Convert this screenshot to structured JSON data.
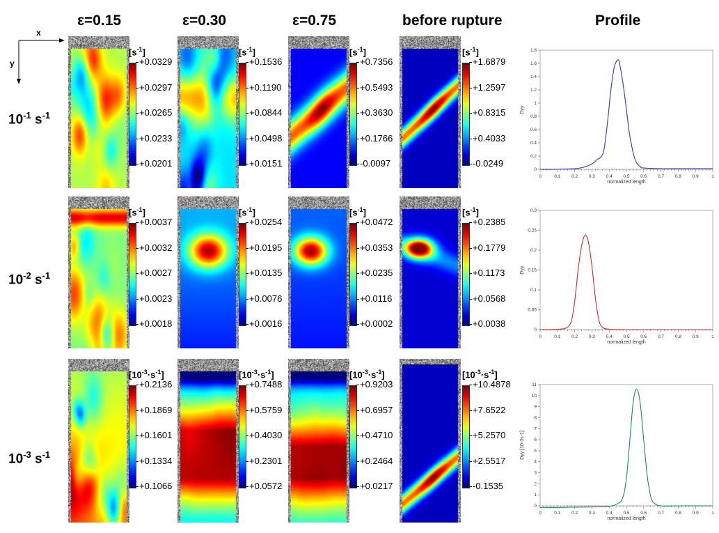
{
  "columns": [
    "ε=0.15",
    "ε=0.30",
    "ε=0.75",
    "before rupture",
    "Profile"
  ],
  "axes": {
    "x": "x",
    "y": "y"
  },
  "rows": [
    {
      "label_base": "10",
      "label_exp": "-1",
      "label_unit": "s",
      "label_unit_exp": "-1",
      "panels": [
        {
          "unit": "[s",
          "unit_exp": "-1",
          "unit_close": "]",
          "ticks": [
            "+0.0329",
            "+0.0297",
            "+0.0265",
            "+0.0233",
            "+0.0201"
          ]
        },
        {
          "unit": "[s",
          "unit_exp": "-1",
          "unit_close": "]",
          "ticks": [
            "+0.1536",
            "+0.1190",
            "+0.0844",
            "+0.0498",
            "+0.0151"
          ]
        },
        {
          "unit": "[s",
          "unit_exp": "-1",
          "unit_close": "]",
          "ticks": [
            "+0.7356",
            "+0.5493",
            "+0.3630",
            "+0.1766",
            "-0.0097"
          ]
        },
        {
          "unit": "[s",
          "unit_exp": "-1",
          "unit_close": "]",
          "ticks": [
            "+1.6879",
            "+1.2597",
            "+0.8315",
            "+0.4033",
            "-0.0249"
          ]
        }
      ]
    },
    {
      "label_base": "10",
      "label_exp": "-2",
      "label_unit": "s",
      "label_unit_exp": "-1",
      "panels": [
        {
          "unit": "[s",
          "unit_exp": "-1",
          "unit_close": "]",
          "ticks": [
            "+0.0037",
            "+0.0032",
            "+0.0027",
            "+0.0023",
            "+0.0018"
          ]
        },
        {
          "unit": "[s",
          "unit_exp": "-1",
          "unit_close": "]",
          "ticks": [
            "+0.0254",
            "+0.0195",
            "+0.0135",
            "+0.0076",
            "+0.0016"
          ]
        },
        {
          "unit": "[s",
          "unit_exp": "-1",
          "unit_close": "]",
          "ticks": [
            "+0.0472",
            "+0.0353",
            "+0.0235",
            "+0.0116",
            "+0.0002"
          ]
        },
        {
          "unit": "[s",
          "unit_exp": "-1",
          "unit_close": "]",
          "ticks": [
            "+0.2385",
            "+0.1779",
            "+0.1173",
            "+0.0568",
            "+0.0038"
          ]
        }
      ]
    },
    {
      "label_base": "10",
      "label_exp": "-3",
      "label_unit": "s",
      "label_unit_exp": "-1",
      "panels": [
        {
          "unit": "[10",
          "unit_exp": "-3",
          "unit_close": "·s",
          "unit_exp2": "-1",
          "unit_end": "]",
          "ticks": [
            "+0.2136",
            "+0.1869",
            "+0.1601",
            "+0.1334",
            "+0.1066"
          ]
        },
        {
          "unit": "[10",
          "unit_exp": "-3",
          "unit_close": "·s",
          "unit_exp2": "-1",
          "unit_end": "]",
          "ticks": [
            "+0.7488",
            "+0.5759",
            "+0.4030",
            "+0.2301",
            "+0.0572"
          ]
        },
        {
          "unit": "[10",
          "unit_exp": "-3",
          "unit_close": "·s",
          "unit_exp2": "-1",
          "unit_end": "]",
          "ticks": [
            "+0.9203",
            "+0.6957",
            "+0.4710",
            "+0.2464",
            "+0.0217"
          ]
        },
        {
          "unit": "[10",
          "unit_exp": "-3",
          "unit_close": "·s",
          "unit_exp2": "-1",
          "unit_end": "]",
          "ticks": [
            "+10.4878",
            "+7.6522",
            "+5.2570",
            "+2.5517",
            "-0.1535"
          ]
        }
      ]
    }
  ],
  "chart_data": [
    {
      "type": "line",
      "color": "#2f3aa8",
      "xlabel": "normalized length",
      "ylabel": "Dyy",
      "xlim": [
        0,
        1
      ],
      "ylim": [
        0,
        1.8
      ],
      "xticks": [
        "0",
        "0.1",
        "0.2",
        "0.3",
        "0.4",
        "0.5",
        "0.6",
        "0.7",
        "0.8",
        "0.9",
        "1"
      ],
      "yticks": [
        "0",
        "0.2",
        "0.4",
        "0.6",
        "0.8",
        "1",
        "1.2",
        "1.4",
        "1.6",
        "1.8"
      ],
      "x": [
        0,
        0.1,
        0.2,
        0.25,
        0.3,
        0.33,
        0.35,
        0.37,
        0.39,
        0.41,
        0.43,
        0.45,
        0.46,
        0.48,
        0.5,
        0.52,
        0.55,
        0.58,
        0.6,
        0.7,
        0.8,
        0.9,
        1
      ],
      "y": [
        0,
        0,
        0.01,
        0.03,
        0.08,
        0.15,
        0.18,
        0.3,
        0.7,
        1.2,
        1.55,
        1.65,
        1.6,
        1.3,
        0.9,
        0.5,
        0.15,
        0.04,
        0.02,
        0.01,
        0.01,
        0.01,
        0.01
      ]
    },
    {
      "type": "line",
      "color": "#c0302a",
      "xlabel": "normalized length",
      "ylabel": "Dyy",
      "xlim": [
        0,
        1
      ],
      "ylim": [
        0,
        0.3
      ],
      "xticks": [
        "0",
        "0.1",
        "0.2",
        "0.3",
        "0.4",
        "0.5",
        "0.6",
        "0.7",
        "0.8",
        "0.9",
        "1"
      ],
      "yticks": [
        "0",
        "0.05",
        "0.1",
        "0.15",
        "0.2",
        "0.25",
        "0.3"
      ],
      "x": [
        0,
        0.1,
        0.15,
        0.18,
        0.2,
        0.22,
        0.24,
        0.26,
        0.28,
        0.3,
        0.32,
        0.34,
        0.36,
        0.4,
        0.5,
        0.6,
        0.8,
        1
      ],
      "y": [
        0,
        0.001,
        0.004,
        0.02,
        0.07,
        0.15,
        0.21,
        0.238,
        0.22,
        0.16,
        0.08,
        0.025,
        0.006,
        0.001,
        0,
        0,
        0,
        0
      ]
    },
    {
      "type": "line",
      "color": "#1f8a5a",
      "xlabel": "normalized length",
      "ylabel": "Dyy [10-3s-1]",
      "xlim": [
        0,
        1
      ],
      "ylim": [
        0,
        11
      ],
      "xticks": [
        "0",
        "0.1",
        "0.2",
        "0.3",
        "0.4",
        "0.5",
        "0.6",
        "0.7",
        "0.8",
        "0.9",
        "1"
      ],
      "yticks": [
        "0",
        "1",
        "2",
        "3",
        "4",
        "5",
        "6",
        "7",
        "8",
        "9",
        "10",
        "11"
      ],
      "x": [
        0,
        0.1,
        0.2,
        0.3,
        0.4,
        0.45,
        0.48,
        0.5,
        0.52,
        0.54,
        0.56,
        0.58,
        0.6,
        0.62,
        0.64,
        0.66,
        0.7,
        0.8,
        0.9,
        1
      ],
      "y": [
        -0.15,
        -0.15,
        -0.12,
        -0.1,
        -0.05,
        0.2,
        0.8,
        2.5,
        6,
        9.5,
        10.6,
        9.3,
        6,
        2.8,
        0.9,
        0.25,
        0,
        0,
        0,
        0
      ]
    }
  ]
}
